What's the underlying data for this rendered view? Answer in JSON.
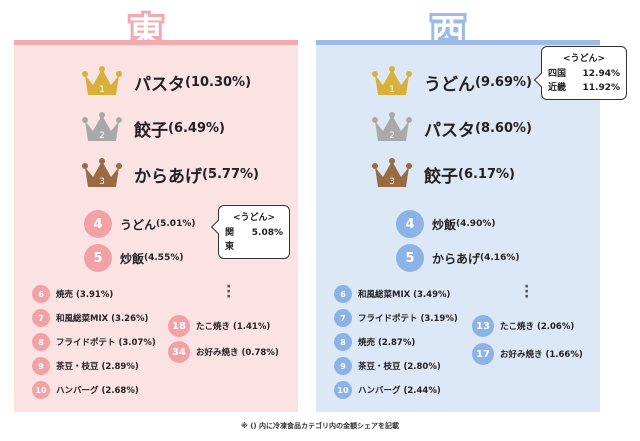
{
  "east": {
    "title": "東",
    "top3": [
      {
        "rank": "1",
        "name": "パスタ",
        "pct": "(10.30%)"
      },
      {
        "rank": "2",
        "name": "餃子",
        "pct": "(6.49%)"
      },
      {
        "rank": "3",
        "name": "からあげ",
        "pct": "(5.77%)"
      }
    ],
    "mid": [
      {
        "rank": "4",
        "name": "うどん",
        "pct": "(5.01%)"
      },
      {
        "rank": "5",
        "name": "炒飯",
        "pct": "(4.55%)"
      }
    ],
    "small": [
      {
        "rank": "6",
        "label": "焼売 (3.91%)"
      },
      {
        "rank": "7",
        "label": "和風総菜MIX (3.26%)"
      },
      {
        "rank": "8",
        "label": "フライドポテト (3.07%)"
      },
      {
        "rank": "9",
        "label": "茶豆・枝豆 (2.89%)"
      },
      {
        "rank": "10",
        "label": "ハンバーグ (2.68%)"
      }
    ],
    "side": [
      {
        "rank": "18",
        "label": "たこ焼き (1.41%)"
      },
      {
        "rank": "34",
        "label": "お好み焼き (0.78%)"
      }
    ],
    "bubble": {
      "title": "<うどん>",
      "rows": [
        {
          "region": "関東",
          "pct": "5.08%"
        }
      ]
    }
  },
  "west": {
    "title": "西",
    "top3": [
      {
        "rank": "1",
        "name": "うどん",
        "pct": "(9.69%)"
      },
      {
        "rank": "2",
        "name": "パスタ",
        "pct": "(8.60%)"
      },
      {
        "rank": "3",
        "name": "餃子",
        "pct": "(6.17%)"
      }
    ],
    "mid": [
      {
        "rank": "4",
        "name": "炒飯",
        "pct": "(4.90%)"
      },
      {
        "rank": "5",
        "name": "からあげ",
        "pct": "(4.16%)"
      }
    ],
    "small": [
      {
        "rank": "6",
        "label": "和風総菜MIX (3.49%)"
      },
      {
        "rank": "7",
        "label": "フライドポテト (3.19%)"
      },
      {
        "rank": "8",
        "label": "焼売 (2.87%)"
      },
      {
        "rank": "9",
        "label": "茶豆・枝豆 (2.80%)"
      },
      {
        "rank": "10",
        "label": "ハンバーグ (2.44%)"
      }
    ],
    "side": [
      {
        "rank": "13",
        "label": "たこ焼き (2.06%)"
      },
      {
        "rank": "17",
        "label": "お好み焼き (1.66%)"
      }
    ],
    "bubble": {
      "title": "<うどん>",
      "rows": [
        {
          "region": "四国",
          "pct": "12.94%"
        },
        {
          "region": "近畿",
          "pct": "11.92%"
        }
      ]
    }
  },
  "footnote": "※ () 内に冷凍食品カテゴリ内の金額シェアを記載",
  "colors": {
    "gold": "#d9b13a",
    "silver": "#a9a9a9",
    "bronze": "#9a6a42",
    "east_accent": "#f2a1a6",
    "west_accent": "#8cb3e5"
  }
}
